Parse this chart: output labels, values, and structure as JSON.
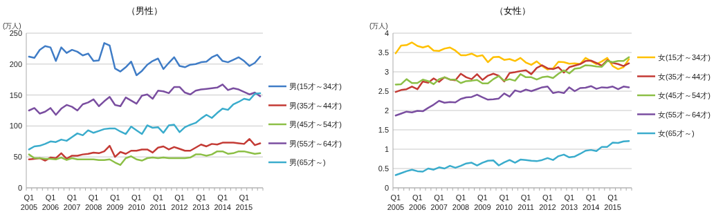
{
  "chart_data": [
    {
      "type": "line",
      "title": "（男性）",
      "ylabel": "(万人)",
      "categories": [
        "Q1 2005",
        null,
        null,
        null,
        "Q1 2006",
        null,
        null,
        null,
        "Q1 2007",
        null,
        null,
        null,
        "Q1 2008",
        null,
        null,
        null,
        "Q1 2009",
        null,
        null,
        null,
        "Q1 2010",
        null,
        null,
        null,
        "Q1 2011",
        null,
        null,
        null,
        "Q1 2012",
        null,
        null,
        null,
        "Q1 2013",
        null,
        null,
        null,
        "Q1 2014",
        null,
        null,
        null,
        "Q1 2015",
        null,
        null,
        null
      ],
      "ylim": [
        0,
        250
      ],
      "yticks": [
        0,
        50,
        100,
        150,
        200,
        250
      ],
      "grid": "y",
      "legend": "right",
      "series": [
        {
          "name": "男(15才～34才)",
          "color": "#3f7cc6",
          "values": [
            212,
            210,
            223,
            229,
            227,
            205,
            227,
            218,
            223,
            220,
            214,
            217,
            205,
            206,
            234,
            230,
            193,
            188,
            195,
            204,
            182,
            189,
            199,
            205,
            209,
            192,
            202,
            211,
            197,
            195,
            199,
            200,
            203,
            204,
            211,
            215,
            205,
            203,
            207,
            211,
            205,
            197,
            202,
            212
          ]
        },
        {
          "name": "男(35才～44才)",
          "color": "#c33a34",
          "values": [
            46,
            47,
            48,
            44,
            49,
            48,
            56,
            47,
            52,
            52,
            54,
            55,
            57,
            56,
            59,
            68,
            50,
            58,
            55,
            60,
            60,
            62,
            62,
            57,
            65,
            67,
            62,
            66,
            63,
            60,
            60,
            65,
            70,
            67,
            71,
            70,
            73,
            73,
            73,
            72,
            71,
            79,
            69,
            72
          ]
        },
        {
          "name": "男(45才～54才)",
          "color": "#8cbf46",
          "values": [
            54,
            48,
            48,
            47,
            47,
            46,
            49,
            45,
            48,
            46,
            46,
            46,
            46,
            45,
            45,
            46,
            41,
            37,
            48,
            51,
            46,
            44,
            48,
            49,
            48,
            49,
            48,
            48,
            48,
            48,
            49,
            54,
            54,
            52,
            54,
            59,
            59,
            55,
            56,
            59,
            59,
            57,
            55,
            56
          ]
        },
        {
          "name": "男(55才～64才)",
          "color": "#7a4ea0",
          "values": [
            125,
            129,
            120,
            123,
            129,
            118,
            128,
            134,
            131,
            125,
            135,
            138,
            143,
            132,
            140,
            147,
            134,
            132,
            146,
            141,
            136,
            149,
            151,
            144,
            157,
            156,
            153,
            163,
            163,
            154,
            151,
            157,
            159,
            160,
            161,
            162,
            167,
            158,
            161,
            159,
            155,
            151,
            154,
            148
          ]
        },
        {
          "name": "男(65才～)",
          "color": "#3aaccc",
          "values": [
            62,
            67,
            68,
            71,
            75,
            74,
            78,
            76,
            82,
            88,
            85,
            93,
            89,
            92,
            95,
            96,
            96,
            91,
            87,
            99,
            93,
            87,
            101,
            97,
            98,
            89,
            101,
            102,
            90,
            98,
            102,
            105,
            112,
            118,
            113,
            121,
            128,
            126,
            135,
            139,
            144,
            142,
            152,
            153
          ]
        }
      ]
    },
    {
      "type": "line",
      "title": "（女性）",
      "ylabel": "(万人)",
      "categories": [
        "Q1 2005",
        null,
        null,
        null,
        "Q1 2006",
        null,
        null,
        null,
        "Q1 2007",
        null,
        null,
        null,
        "Q1 2008",
        null,
        null,
        null,
        "Q1 2009",
        null,
        null,
        null,
        "Q1 2010",
        null,
        null,
        null,
        "Q1 2011",
        null,
        null,
        null,
        "Q1 2012",
        null,
        null,
        null,
        "Q1 2013",
        null,
        null,
        null,
        "Q1 2014",
        null,
        null,
        null,
        "Q1 2015",
        null,
        null,
        null
      ],
      "ylim": [
        0,
        4
      ],
      "yticks": [
        0,
        0.5,
        1,
        1.5,
        2,
        2.5,
        3,
        3.5,
        4
      ],
      "grid": "y",
      "legend": "right",
      "series": [
        {
          "name": "女(15才～34才)",
          "color": "#ffc000",
          "values": [
            3.48,
            3.68,
            3.69,
            3.76,
            3.67,
            3.63,
            3.67,
            3.55,
            3.54,
            3.6,
            3.63,
            3.55,
            3.43,
            3.43,
            3.47,
            3.4,
            3.43,
            3.25,
            3.38,
            3.39,
            3.31,
            3.33,
            3.28,
            3.36,
            3.24,
            3.18,
            3.27,
            3.15,
            3.06,
            3.09,
            3.26,
            3.25,
            3.21,
            3.22,
            3.2,
            3.36,
            3.28,
            3.2,
            3.27,
            3.36,
            3.15,
            3.07,
            3.12,
            3.33
          ]
        },
        {
          "name": "女(35才～44才)",
          "color": "#c33a34",
          "values": [
            2.48,
            2.53,
            2.55,
            2.62,
            2.55,
            2.75,
            2.72,
            2.83,
            2.74,
            2.86,
            2.8,
            2.78,
            2.95,
            2.86,
            2.81,
            2.94,
            2.79,
            2.9,
            2.95,
            2.9,
            2.75,
            2.97,
            2.99,
            3.02,
            3.04,
            2.94,
            3.1,
            3.17,
            3.09,
            3.07,
            3.12,
            2.98,
            3.12,
            3.16,
            3.2,
            3.28,
            3.29,
            3.23,
            3.16,
            3.3,
            3.23,
            3.2,
            3.15,
            3.22
          ]
        },
        {
          "name": "女(45才～54才)",
          "color": "#8cbf46",
          "values": [
            2.67,
            2.68,
            2.81,
            2.71,
            2.71,
            2.8,
            2.76,
            2.68,
            2.81,
            2.86,
            2.8,
            2.8,
            2.71,
            2.76,
            2.77,
            2.79,
            2.7,
            2.7,
            2.81,
            2.89,
            2.77,
            2.81,
            2.77,
            2.94,
            2.86,
            2.86,
            2.8,
            2.86,
            2.88,
            2.84,
            2.95,
            3.04,
            2.96,
            3.08,
            3.1,
            3.17,
            3.16,
            3.14,
            3.13,
            3.28,
            3.25,
            3.28,
            3.28,
            3.38
          ]
        },
        {
          "name": "女(55才～64才)",
          "color": "#7a4ea0",
          "values": [
            1.87,
            1.92,
            1.97,
            1.95,
            1.99,
            1.98,
            2.07,
            2.15,
            2.25,
            2.2,
            2.22,
            2.21,
            2.3,
            2.34,
            2.35,
            2.41,
            2.34,
            2.28,
            2.29,
            2.31,
            2.44,
            2.36,
            2.52,
            2.48,
            2.54,
            2.5,
            2.55,
            2.6,
            2.62,
            2.45,
            2.48,
            2.45,
            2.6,
            2.5,
            2.58,
            2.59,
            2.63,
            2.56,
            2.6,
            2.59,
            2.62,
            2.55,
            2.62,
            2.6
          ]
        },
        {
          "name": "女(65才～)",
          "color": "#3aaccc",
          "values": [
            0.33,
            0.38,
            0.43,
            0.47,
            0.43,
            0.42,
            0.5,
            0.47,
            0.53,
            0.5,
            0.57,
            0.52,
            0.57,
            0.63,
            0.65,
            0.58,
            0.65,
            0.7,
            0.71,
            0.58,
            0.66,
            0.72,
            0.65,
            0.73,
            0.72,
            0.7,
            0.69,
            0.72,
            0.77,
            0.72,
            0.82,
            0.86,
            0.79,
            0.81,
            0.88,
            0.96,
            0.98,
            0.95,
            1.06,
            1.06,
            1.17,
            1.16,
            1.2,
            1.21
          ]
        }
      ]
    }
  ]
}
